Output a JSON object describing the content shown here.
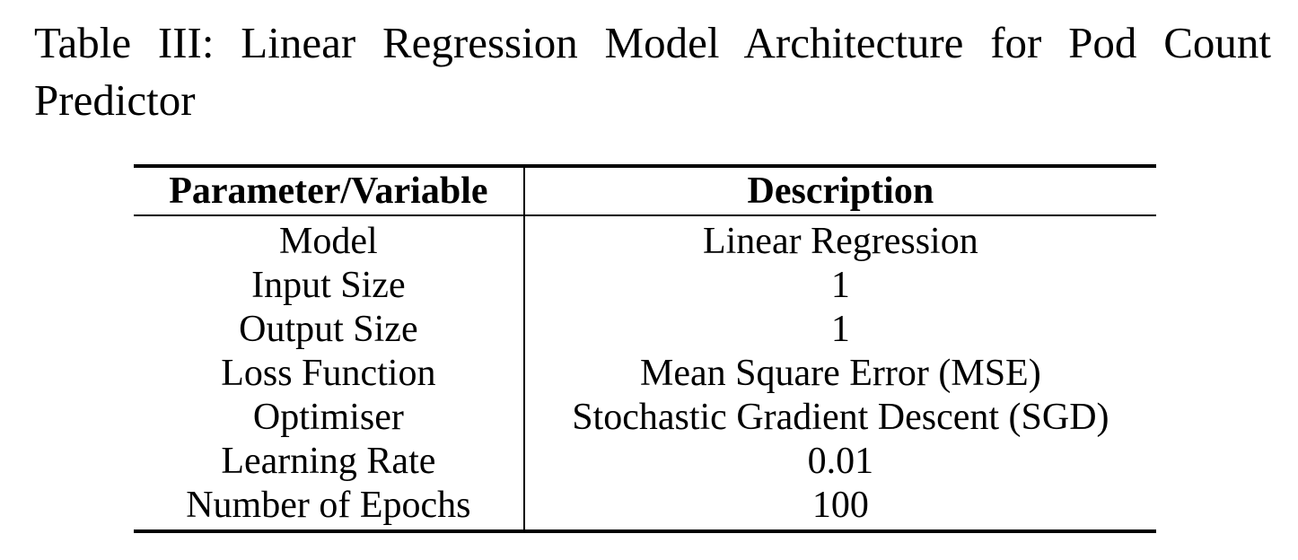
{
  "caption": "Table III: Linear Regression Model Architecture for Pod Count Predictor",
  "table": {
    "headers": [
      "Parameter/Variable",
      "Description"
    ],
    "rows": [
      [
        "Model",
        "Linear Regression"
      ],
      [
        "Input Size",
        "1"
      ],
      [
        "Output Size",
        "1"
      ],
      [
        "Loss Function",
        "Mean Square Error (MSE)"
      ],
      [
        "Optimiser",
        "Stochastic Gradient Descent (SGD)"
      ],
      [
        "Learning Rate",
        "0.01"
      ],
      [
        "Number of Epochs",
        "100"
      ]
    ]
  }
}
